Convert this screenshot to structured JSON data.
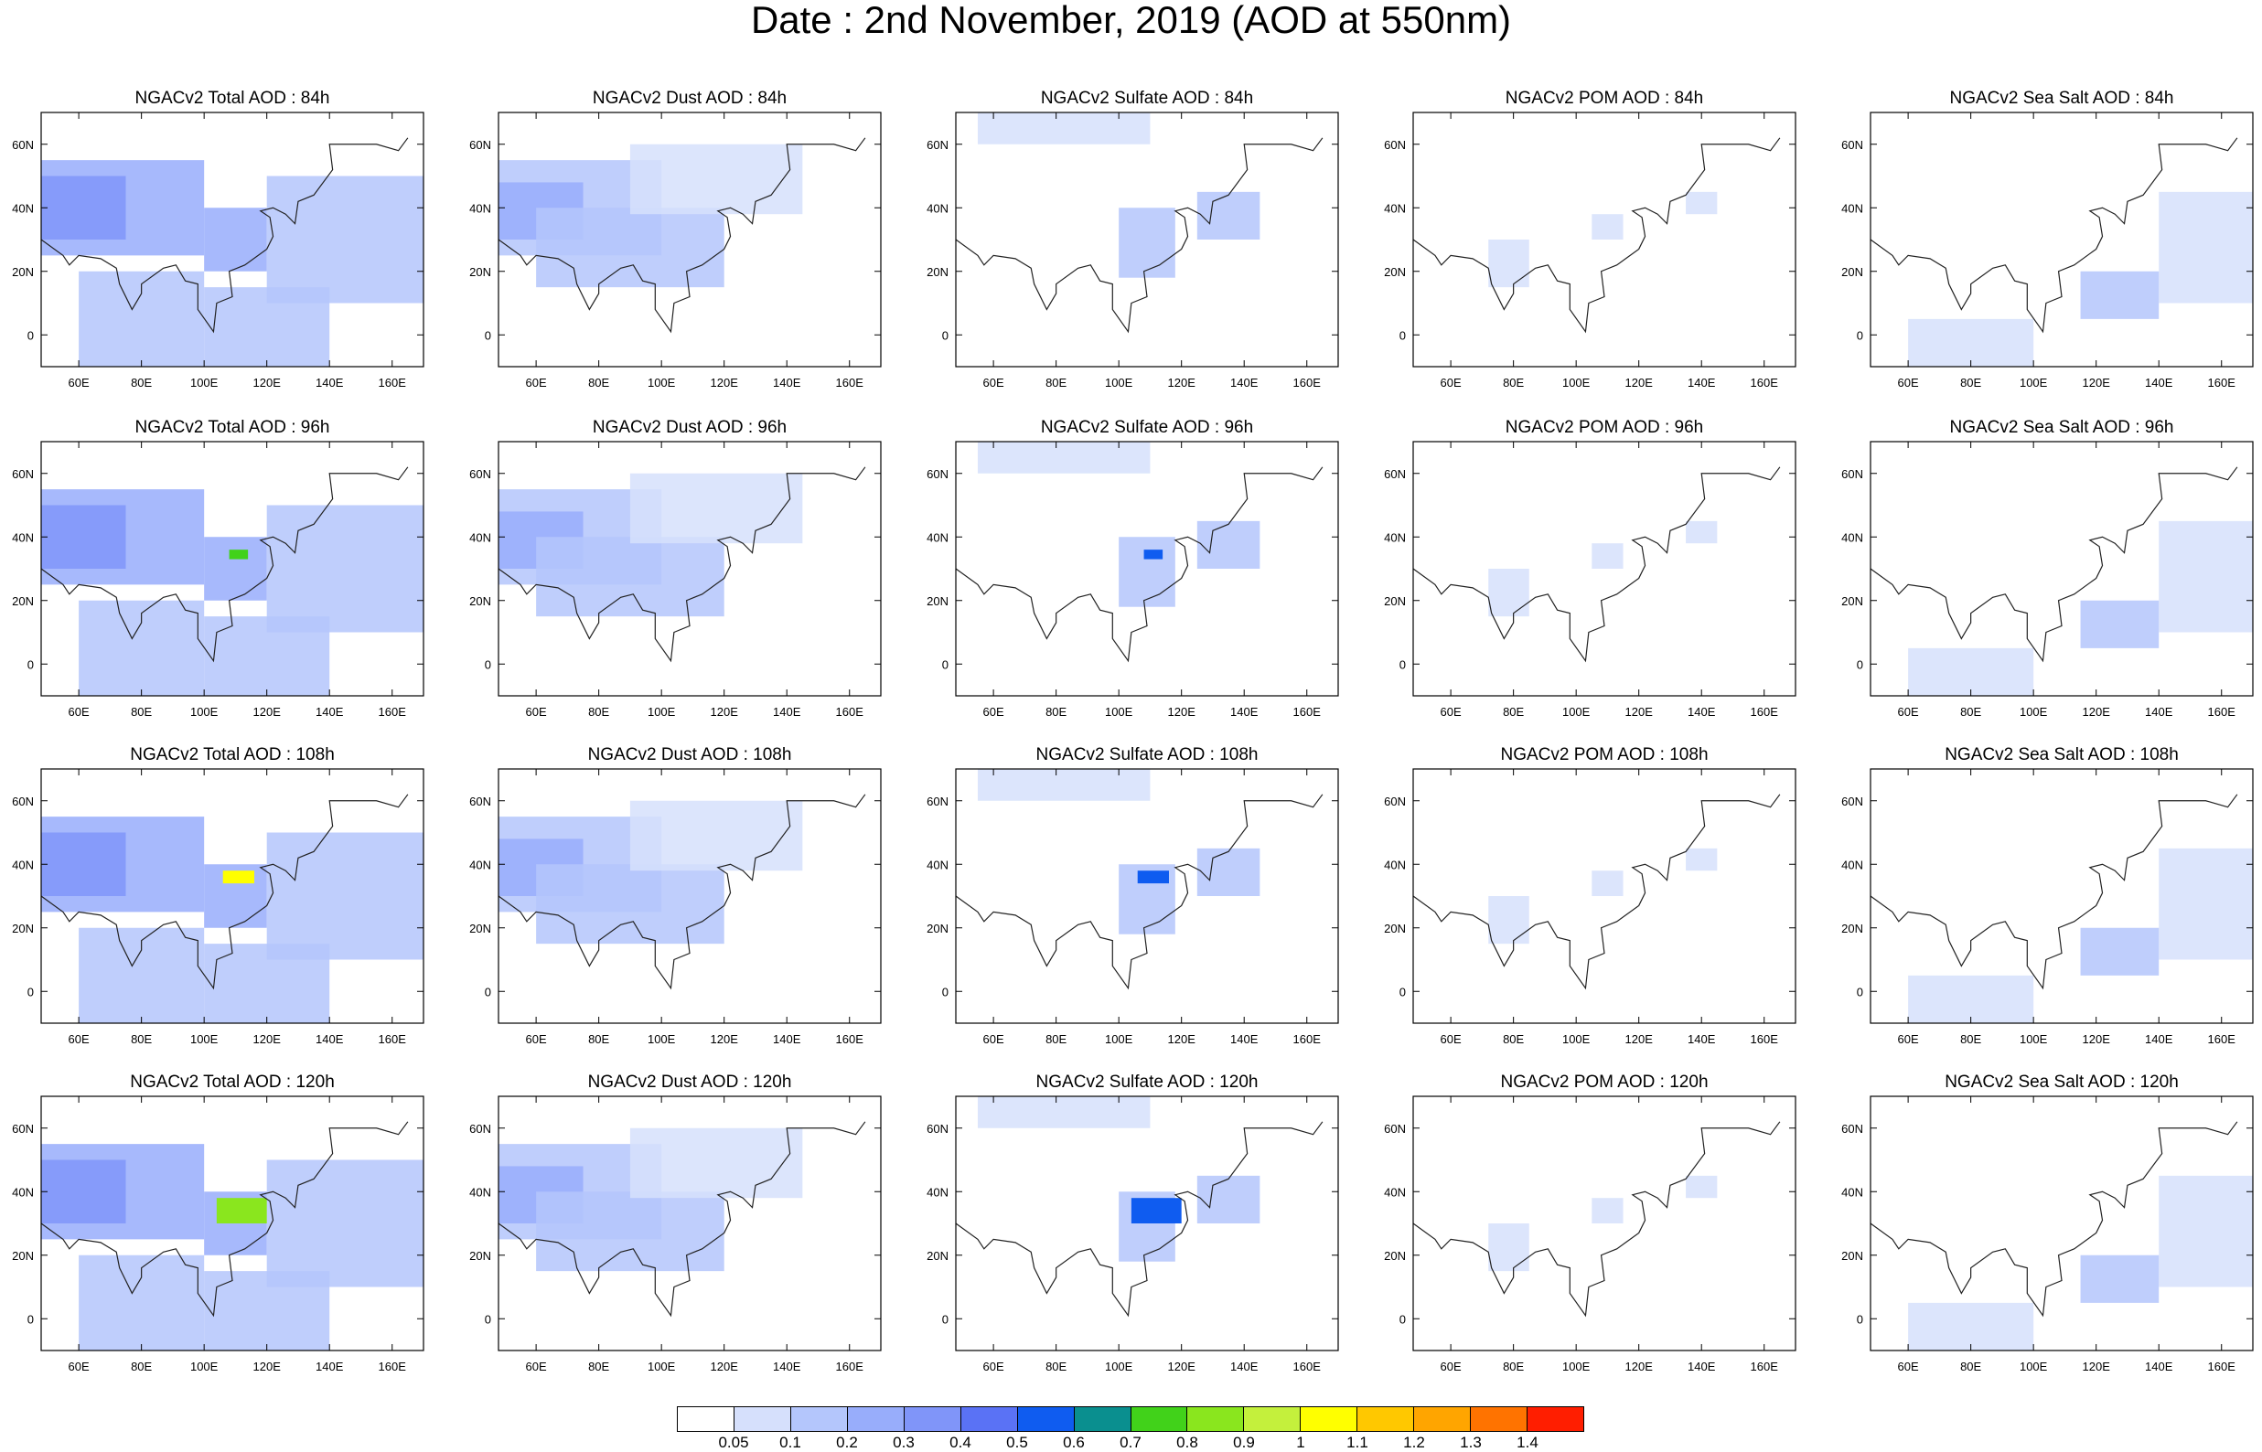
{
  "title": "Date : 2nd November, 2019 (AOD at 550nm)",
  "map": {
    "type": "heatmap",
    "region_lon_range": [
      48,
      170
    ],
    "region_lat_range": [
      -10,
      70
    ],
    "lon_tick_labels": [
      "60E",
      "80E",
      "100E",
      "120E",
      "140E",
      "160E"
    ],
    "lat_tick_labels": [
      "60N",
      "40N",
      "20N",
      "0"
    ],
    "lon_ticks": [
      60,
      80,
      100,
      120,
      140,
      160
    ],
    "lat_ticks": [
      60,
      40,
      20,
      0
    ]
  },
  "panel_titles": [
    [
      "NGACv2 Total AOD : 84h",
      "NGACv2 Dust AOD : 84h",
      "NGACv2 Sulfate AOD : 84h",
      "NGACv2 POM AOD : 84h",
      "NGACv2 Sea Salt AOD : 84h"
    ],
    [
      "NGACv2 Total AOD : 96h",
      "NGACv2 Dust AOD : 96h",
      "NGACv2 Sulfate AOD : 96h",
      "NGACv2 POM AOD : 96h",
      "NGACv2 Sea Salt AOD : 96h"
    ],
    [
      "NGACv2 Total AOD : 108h",
      "NGACv2 Dust AOD : 108h",
      "NGACv2 Sulfate AOD : 108h",
      "NGACv2 POM AOD : 108h",
      "NGACv2 Sea Salt AOD : 108h"
    ],
    [
      "NGACv2 Total AOD : 120h",
      "NGACv2 Dust AOD : 120h",
      "NGACv2 Sulfate AOD : 120h",
      "NGACv2 POM AOD : 120h",
      "NGACv2 Sea Salt  AOD : 120h"
    ]
  ],
  "colorbar": {
    "labels": [
      "0.05",
      "0.1",
      "0.2",
      "0.3",
      "0.4",
      "0.5",
      "0.6",
      "0.7",
      "0.8",
      "0.9",
      "1",
      "1.1",
      "1.2",
      "1.3",
      "1.4"
    ],
    "colors": [
      "#ffffff",
      "#d6e0fc",
      "#b4c6fc",
      "#98adfb",
      "#8095f9",
      "#5a72f5",
      "#0f5cf0",
      "#0a8f8f",
      "#41d21a",
      "#8ae61e",
      "#c4f03c",
      "#ffff00",
      "#ffc800",
      "#ffa500",
      "#ff7300",
      "#ff1e00"
    ]
  },
  "fields": {
    "total": [
      {
        "lon": [
          48,
          100
        ],
        "lat": [
          25,
          55
        ],
        "level": 3
      },
      {
        "lon": [
          48,
          75
        ],
        "lat": [
          30,
          50
        ],
        "level": 4
      },
      {
        "lon": [
          100,
          120
        ],
        "lat": [
          20,
          40
        ],
        "level": 3
      },
      {
        "lon": [
          120,
          170
        ],
        "lat": [
          10,
          50
        ],
        "level": 2
      },
      {
        "lon": [
          60,
          100
        ],
        "lat": [
          -10,
          20
        ],
        "level": 2
      },
      {
        "lon": [
          100,
          140
        ],
        "lat": [
          -10,
          15
        ],
        "level": 2
      }
    ],
    "dust": [
      {
        "lon": [
          48,
          100
        ],
        "lat": [
          25,
          55
        ],
        "level": 2
      },
      {
        "lon": [
          48,
          75
        ],
        "lat": [
          30,
          48
        ],
        "level": 3
      },
      {
        "lon": [
          60,
          120
        ],
        "lat": [
          15,
          40
        ],
        "level": 2
      },
      {
        "lon": [
          90,
          145
        ],
        "lat": [
          38,
          60
        ],
        "level": 1
      }
    ],
    "sulfate": [
      {
        "lon": [
          100,
          118
        ],
        "lat": [
          18,
          40
        ],
        "level": 2
      },
      {
        "lon": [
          125,
          145
        ],
        "lat": [
          30,
          45
        ],
        "level": 2
      },
      {
        "lon": [
          55,
          110
        ],
        "lat": [
          60,
          70
        ],
        "level": 1
      }
    ],
    "pom": [
      {
        "lon": [
          72,
          85
        ],
        "lat": [
          15,
          30
        ],
        "level": 1
      },
      {
        "lon": [
          105,
          115
        ],
        "lat": [
          30,
          38
        ],
        "level": 1
      },
      {
        "lon": [
          135,
          145
        ],
        "lat": [
          38,
          45
        ],
        "level": 1
      }
    ],
    "seasalt": [
      {
        "lon": [
          140,
          170
        ],
        "lat": [
          10,
          45
        ],
        "level": 1
      },
      {
        "lon": [
          115,
          140
        ],
        "lat": [
          5,
          20
        ],
        "level": 2
      },
      {
        "lon": [
          60,
          100
        ],
        "lat": [
          -10,
          5
        ],
        "level": 1
      }
    ]
  },
  "hotspots": [
    {
      "row": 1,
      "lon": [
        108,
        114
      ],
      "lat": [
        33,
        36
      ],
      "level": 8
    },
    {
      "row": 2,
      "lon": [
        106,
        116
      ],
      "lat": [
        34,
        38
      ],
      "level": 11
    },
    {
      "row": 3,
      "lon": [
        104,
        120
      ],
      "lat": [
        30,
        38
      ],
      "level": 9
    }
  ]
}
